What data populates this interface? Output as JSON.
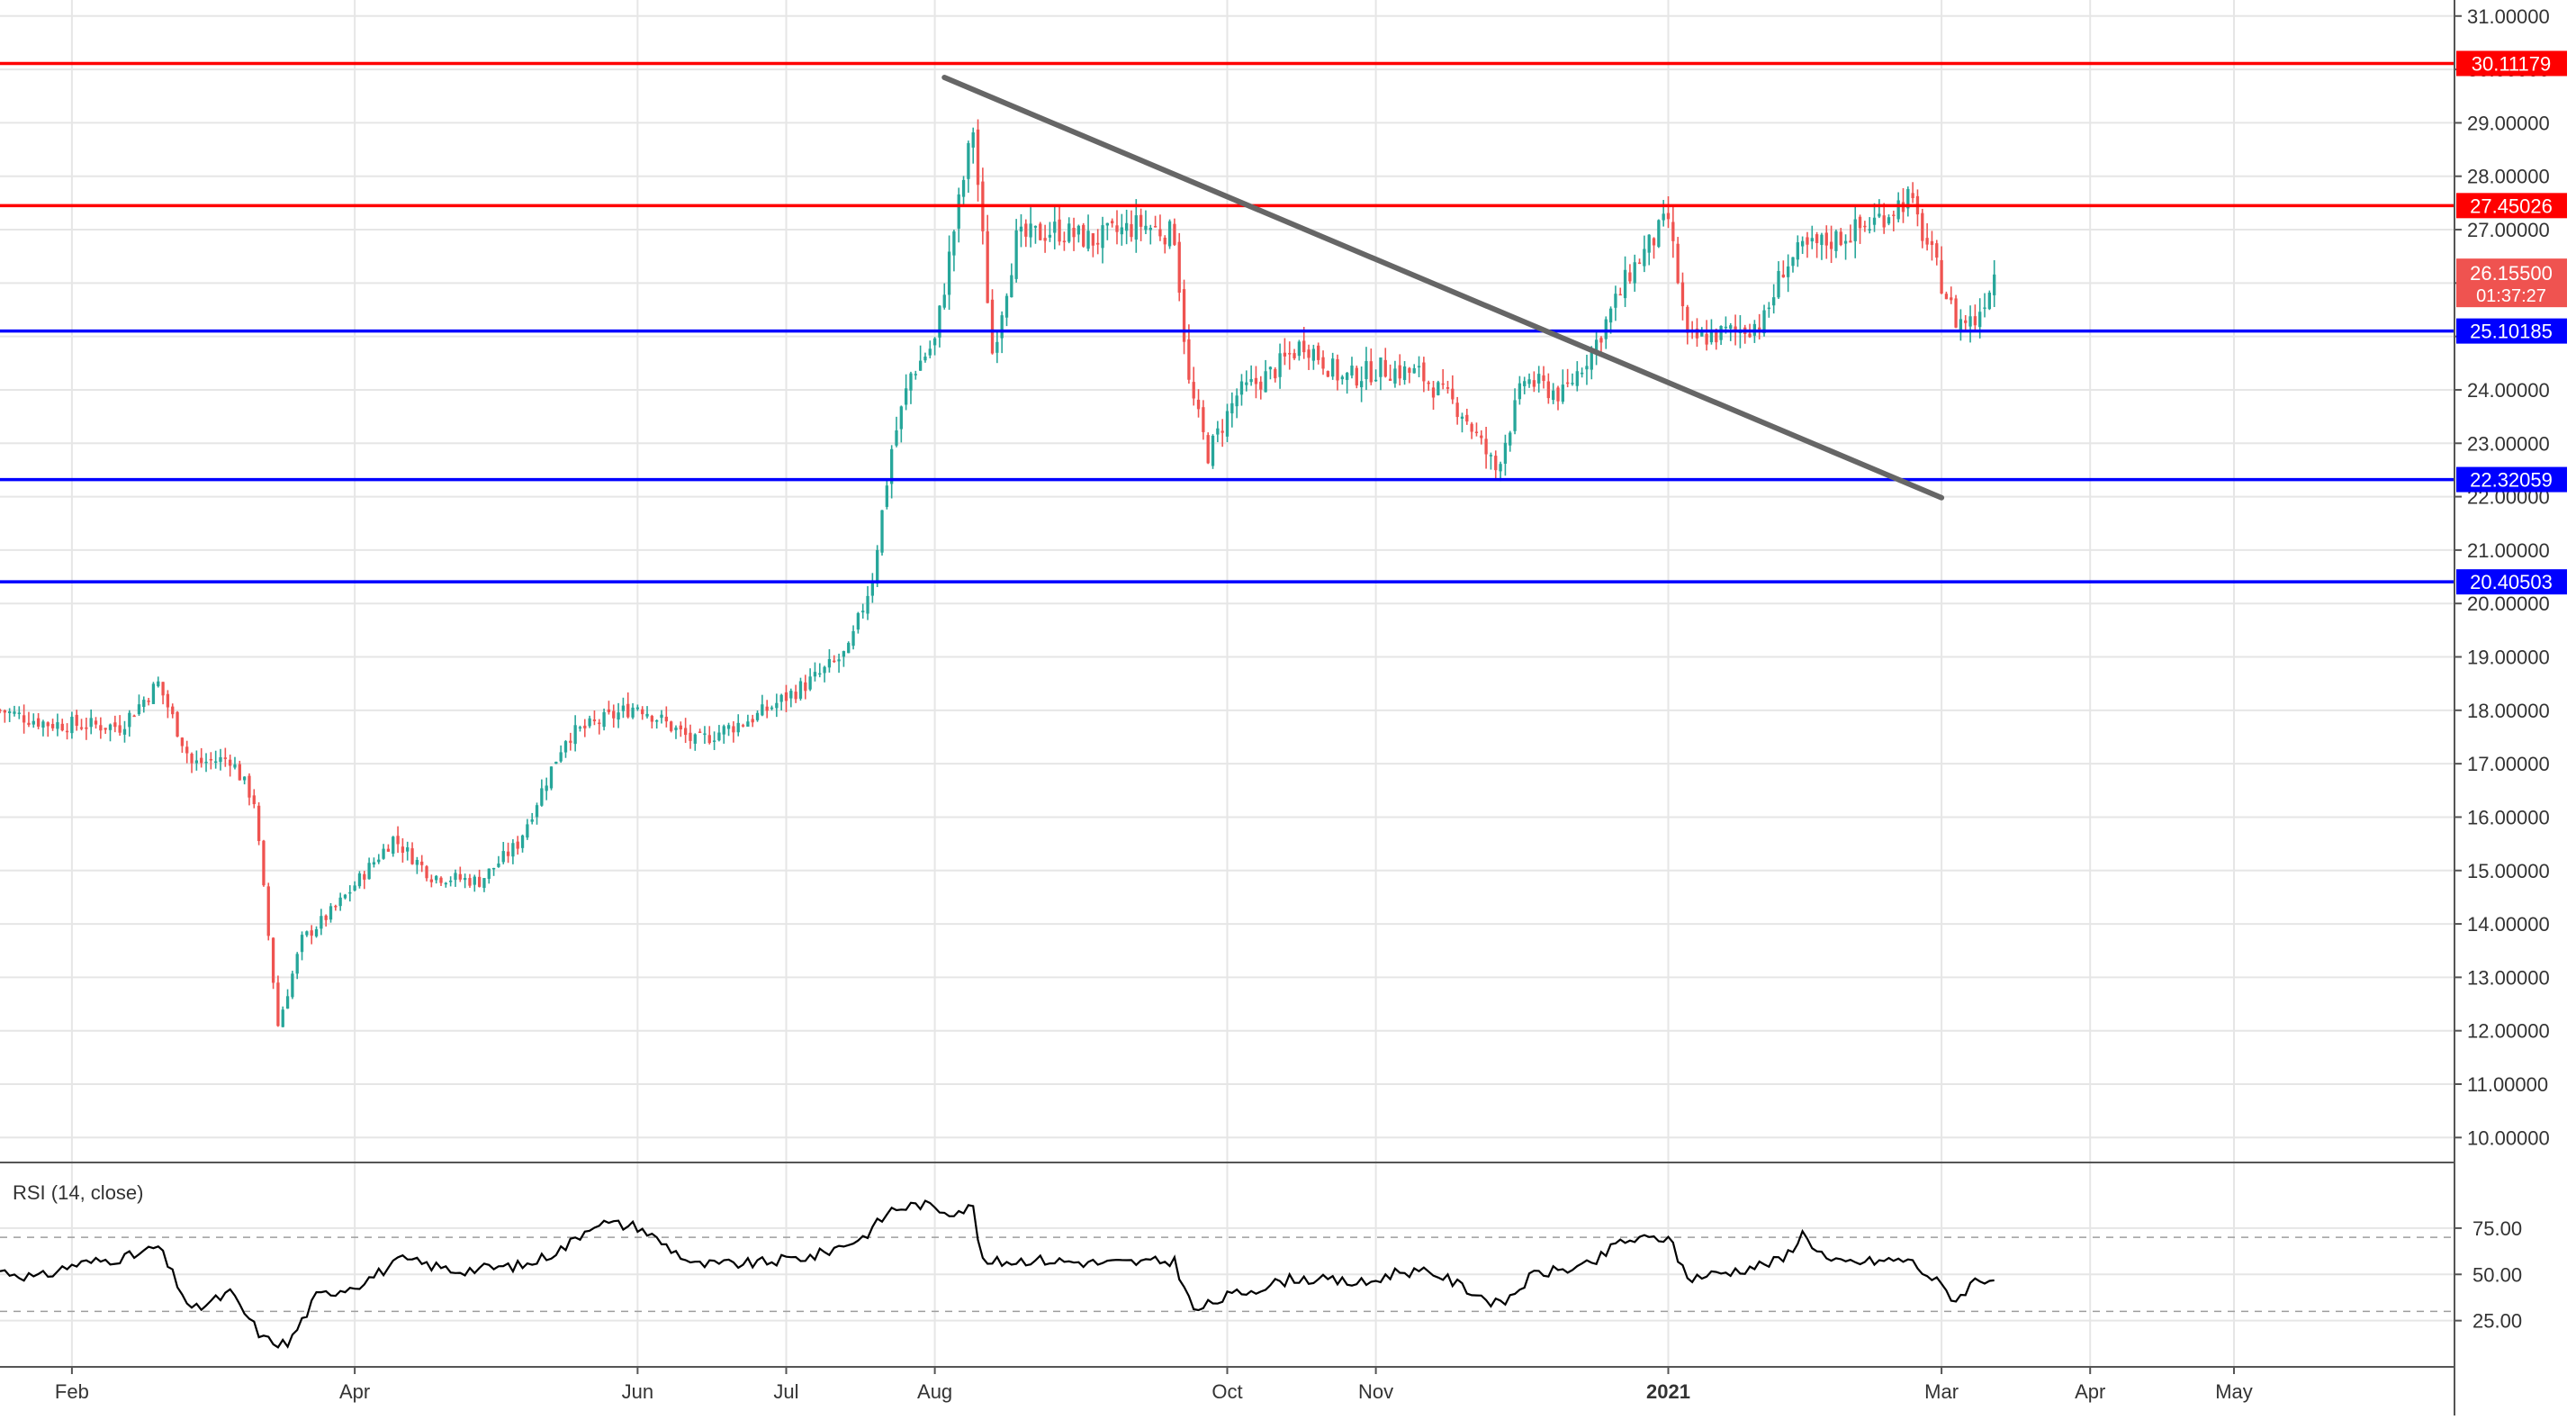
{
  "colors": {
    "background": "#ffffff",
    "grid": "#e6e6e6",
    "axis_text": "#333333",
    "bull": "#26a69a",
    "bear": "#ef5350",
    "resistance": "#ff0000",
    "support": "#0000ff",
    "trendline": "#666666",
    "rsi_line": "#000000",
    "rsi_band": "#9e9e9e",
    "last_price_bg": "#ef5350"
  },
  "chart_data": [
    {
      "type": "candlestick",
      "title": "",
      "price_axis": {
        "ylim": [
          9.55,
          31.3
        ],
        "ticks": [
          "10.00000",
          "11.00000",
          "12.00000",
          "13.00000",
          "14.00000",
          "15.00000",
          "16.00000",
          "17.00000",
          "18.00000",
          "19.00000",
          "20.00000",
          "21.00000",
          "22.00000",
          "23.00000",
          "24.00000",
          "25.00000",
          "26.00000",
          "27.00000",
          "28.00000",
          "29.00000",
          "30.00000",
          "31.00000"
        ]
      },
      "time_axis": {
        "labels": [
          "Feb",
          "Apr",
          "Jun",
          "Jul",
          "Aug",
          "Oct",
          "Nov",
          "2021",
          "Mar",
          "Apr",
          "May"
        ],
        "bold_labels": [
          "2021"
        ],
        "label_day_index": [
          15,
          74,
          133,
          164,
          195,
          256,
          287,
          348,
          405,
          436,
          466
        ],
        "day_range": [
          0,
          512
        ]
      },
      "ohlc_anchors": [
        [
          0,
          18.0
        ],
        [
          10,
          17.75
        ],
        [
          25,
          17.7
        ],
        [
          33,
          18.5
        ],
        [
          40,
          17.0
        ],
        [
          48,
          17.1
        ],
        [
          53,
          16.3
        ],
        [
          58,
          12.1
        ],
        [
          63,
          13.7
        ],
        [
          70,
          14.3
        ],
        [
          82,
          15.6
        ],
        [
          90,
          14.9
        ],
        [
          100,
          14.8
        ],
        [
          108,
          15.5
        ],
        [
          118,
          17.5
        ],
        [
          133,
          18.1
        ],
        [
          145,
          17.4
        ],
        [
          158,
          17.9
        ],
        [
          170,
          18.6
        ],
        [
          177,
          19.1
        ],
        [
          182,
          20.5
        ],
        [
          186,
          22.9
        ],
        [
          190,
          24.3
        ],
        [
          195,
          24.9
        ],
        [
          199,
          27.0
        ],
        [
          203,
          28.9
        ],
        [
          207,
          24.7
        ],
        [
          212,
          26.8
        ],
        [
          220,
          27.0
        ],
        [
          228,
          26.8
        ],
        [
          238,
          27.1
        ],
        [
          245,
          26.9
        ],
        [
          248,
          24.1
        ],
        [
          252,
          22.8
        ],
        [
          258,
          23.9
        ],
        [
          265,
          24.3
        ],
        [
          272,
          24.9
        ],
        [
          280,
          24.2
        ],
        [
          288,
          24.4
        ],
        [
          296,
          24.3
        ],
        [
          305,
          23.6
        ],
        [
          312,
          22.5
        ],
        [
          318,
          24.2
        ],
        [
          326,
          23.9
        ],
        [
          333,
          24.9
        ],
        [
          340,
          26.2
        ],
        [
          348,
          27.2
        ],
        [
          352,
          24.9
        ],
        [
          356,
          25.0
        ],
        [
          362,
          25.1
        ],
        [
          368,
          25.3
        ],
        [
          372,
          26.3
        ],
        [
          376,
          26.6
        ],
        [
          382,
          26.8
        ],
        [
          390,
          27.1
        ],
        [
          398,
          27.6
        ],
        [
          403,
          26.5
        ],
        [
          408,
          25.3
        ],
        [
          412,
          25.3
        ],
        [
          416,
          26.16
        ]
      ],
      "annotations": {
        "resistance_levels": [
          {
            "price": 30.11179,
            "label": "30.11179"
          },
          {
            "price": 27.45026,
            "label": "27.45026"
          }
        ],
        "support_levels": [
          {
            "price": 25.10185,
            "label": "25.10185"
          },
          {
            "price": 22.32059,
            "label": "22.32059"
          },
          {
            "price": 20.40503,
            "label": "20.40503"
          }
        ],
        "trendline": {
          "start": {
            "day": 197,
            "price": 29.85
          },
          "end": {
            "day": 405,
            "price": 21.98
          }
        },
        "last_price": {
          "value": "26.15500",
          "countdown": "01:37:27"
        }
      }
    },
    {
      "type": "line",
      "title": "RSI (14, close)",
      "ylim": [
        0,
        110
      ],
      "ticks": [
        "25.00",
        "50.00",
        "75.00"
      ],
      "band_levels": [
        30,
        70
      ],
      "anchors": [
        [
          0,
          52
        ],
        [
          8,
          48
        ],
        [
          15,
          55
        ],
        [
          28,
          60
        ],
        [
          33,
          65
        ],
        [
          40,
          30
        ],
        [
          48,
          40
        ],
        [
          55,
          15
        ],
        [
          60,
          12
        ],
        [
          66,
          38
        ],
        [
          75,
          45
        ],
        [
          84,
          58
        ],
        [
          95,
          52
        ],
        [
          110,
          55
        ],
        [
          118,
          65
        ],
        [
          124,
          78
        ],
        [
          133,
          76
        ],
        [
          145,
          55
        ],
        [
          158,
          56
        ],
        [
          170,
          60
        ],
        [
          180,
          70
        ],
        [
          186,
          85
        ],
        [
          192,
          88
        ],
        [
          198,
          84
        ],
        [
          203,
          86
        ],
        [
          205,
          56
        ],
        [
          215,
          58
        ],
        [
          230,
          56
        ],
        [
          245,
          57
        ],
        [
          249,
          30
        ],
        [
          256,
          38
        ],
        [
          270,
          48
        ],
        [
          285,
          45
        ],
        [
          292,
          52
        ],
        [
          300,
          50
        ],
        [
          313,
          33
        ],
        [
          320,
          50
        ],
        [
          332,
          55
        ],
        [
          338,
          68
        ],
        [
          348,
          70
        ],
        [
          352,
          48
        ],
        [
          362,
          52
        ],
        [
          372,
          58
        ],
        [
          376,
          72
        ],
        [
          382,
          56
        ],
        [
          398,
          58
        ],
        [
          404,
          46
        ],
        [
          408,
          36
        ],
        [
          412,
          47
        ],
        [
          416,
          48
        ]
      ]
    }
  ]
}
